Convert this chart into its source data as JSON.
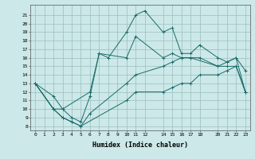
{
  "xlabel": "Humidex (Indice chaleur)",
  "background_color": "#cce8e8",
  "grid_color": "#9bbebe",
  "line_color": "#1a6b6b",
  "xlim": [
    -0.5,
    23.5
  ],
  "ylim": [
    7.5,
    22.2
  ],
  "xticks": [
    0,
    1,
    2,
    3,
    4,
    5,
    6,
    7,
    8,
    9,
    10,
    11,
    12,
    14,
    15,
    16,
    17,
    18,
    20,
    21,
    22,
    23
  ],
  "yticks": [
    8,
    9,
    10,
    11,
    12,
    13,
    14,
    15,
    16,
    17,
    18,
    19,
    20,
    21
  ],
  "series": [
    {
      "x": [
        0,
        2,
        3,
        4,
        5,
        6,
        7,
        8,
        10,
        11,
        12,
        14,
        15,
        16,
        17,
        18,
        20,
        21,
        22,
        23
      ],
      "y": [
        13,
        11.5,
        10,
        9,
        8.5,
        11.5,
        16.5,
        16,
        19,
        21,
        21.5,
        19,
        19.5,
        16.5,
        16.5,
        17.5,
        16,
        15.5,
        16,
        14.5
      ]
    },
    {
      "x": [
        0,
        2,
        3,
        6,
        7,
        10,
        11,
        14,
        15,
        16,
        17,
        20,
        21,
        22,
        23
      ],
      "y": [
        13,
        10,
        10,
        12,
        16.5,
        16,
        18.5,
        16,
        16.5,
        16,
        16,
        15,
        15,
        15,
        12
      ]
    },
    {
      "x": [
        0,
        2,
        3,
        4,
        5,
        6,
        10,
        11,
        14,
        15,
        16,
        17,
        18,
        20,
        21,
        22,
        23
      ],
      "y": [
        13,
        10,
        9,
        8.5,
        8,
        9.5,
        13,
        14,
        15,
        15.5,
        16,
        16,
        16,
        15,
        15.5,
        16,
        12
      ]
    },
    {
      "x": [
        0,
        2,
        3,
        4,
        5,
        10,
        11,
        14,
        15,
        16,
        17,
        18,
        20,
        21,
        22,
        23
      ],
      "y": [
        13,
        10,
        9,
        8.5,
        8,
        11,
        12,
        12,
        12.5,
        13,
        13,
        14,
        14,
        14.5,
        15,
        12
      ]
    }
  ]
}
